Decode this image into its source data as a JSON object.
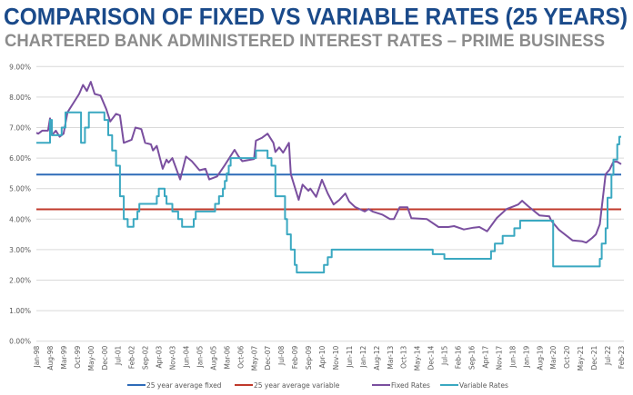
{
  "chart_data": {
    "type": "line",
    "title": "COMPARISON OF FIXED VS VARIABLE RATES (25 YEARS)",
    "subtitle": "CHARTERED BANK ADMINISTERED INTEREST RATES – PRIME  BUSINESS",
    "xlabel": "",
    "ylabel": "",
    "ylim": [
      0,
      9
    ],
    "yticks": [
      "0.00%",
      "1.00%",
      "2.00%",
      "3.00%",
      "4.00%",
      "5.00%",
      "6.00%",
      "7.00%",
      "8.00%",
      "9.00%"
    ],
    "xlim": [
      "1998-01",
      "2023-02"
    ],
    "xticks": [
      "Jan-98",
      "Aug-98",
      "Mar-99",
      "Oct-99",
      "May-00",
      "Dec-00",
      "Jul-01",
      "Feb-02",
      "Sep-02",
      "Apr-03",
      "Nov-03",
      "Jun-04",
      "Jan-05",
      "Aug-05",
      "Mar-06",
      "Oct-06",
      "May-07",
      "Dec-07",
      "Jul-08",
      "Feb-09",
      "Sep-09",
      "Apr-10",
      "Nov-10",
      "Jun-11",
      "Jan-12",
      "Aug-12",
      "Mar-13",
      "Oct-13",
      "May-14",
      "Dec-14",
      "Jul-15",
      "Feb-16",
      "Sep-16",
      "Apr-17",
      "Nov-17",
      "Jun-18",
      "Jan-19",
      "Aug-19",
      "Mar-20",
      "Oct-20",
      "May-21",
      "Dec-21",
      "Jul-22",
      "Feb-23"
    ],
    "grid": true,
    "legend_position": "bottom",
    "series": [
      {
        "name": "25 year average fixed",
        "color": "#2e6bb8",
        "style": "horizontal",
        "value": 5.46
      },
      {
        "name": "25 year average variable",
        "color": "#c0392b",
        "style": "horizontal",
        "value": 4.32
      },
      {
        "name": "Fixed Rates",
        "color": "#7a4f9f",
        "style": "line",
        "points": [
          [
            "1998-01",
            6.83
          ],
          [
            "1998-02",
            6.8
          ],
          [
            "1998-04",
            6.9
          ],
          [
            "1998-07",
            6.9
          ],
          [
            "1998-08",
            7.3
          ],
          [
            "1998-09",
            6.75
          ],
          [
            "1998-11",
            6.9
          ],
          [
            "1999-01",
            6.7
          ],
          [
            "1999-03",
            6.8
          ],
          [
            "1999-05",
            7.5
          ],
          [
            "1999-08",
            7.8
          ],
          [
            "1999-11",
            8.1
          ],
          [
            "2000-01",
            8.4
          ],
          [
            "2000-03",
            8.2
          ],
          [
            "2000-05",
            8.5
          ],
          [
            "2000-07",
            8.1
          ],
          [
            "2000-10",
            8.05
          ],
          [
            "2001-01",
            7.6
          ],
          [
            "2001-03",
            7.2
          ],
          [
            "2001-06",
            7.45
          ],
          [
            "2001-08",
            7.4
          ],
          [
            "2001-10",
            6.5
          ],
          [
            "2002-02",
            6.6
          ],
          [
            "2002-04",
            7.0
          ],
          [
            "2002-07",
            6.95
          ],
          [
            "2002-09",
            6.5
          ],
          [
            "2002-12",
            6.45
          ],
          [
            "2003-01",
            6.25
          ],
          [
            "2003-03",
            6.4
          ],
          [
            "2003-06",
            5.65
          ],
          [
            "2003-08",
            5.95
          ],
          [
            "2003-09",
            5.85
          ],
          [
            "2003-11",
            6.0
          ],
          [
            "2004-03",
            5.3
          ],
          [
            "2004-06",
            6.05
          ],
          [
            "2004-09",
            5.9
          ],
          [
            "2005-01",
            5.6
          ],
          [
            "2005-04",
            5.65
          ],
          [
            "2005-06",
            5.3
          ],
          [
            "2005-10",
            5.4
          ],
          [
            "2006-02",
            5.77
          ],
          [
            "2006-07",
            6.27
          ],
          [
            "2006-09",
            6.06
          ],
          [
            "2006-11",
            5.9
          ],
          [
            "2007-05",
            5.97
          ],
          [
            "2007-06",
            6.57
          ],
          [
            "2007-09",
            6.66
          ],
          [
            "2007-12",
            6.8
          ],
          [
            "2008-03",
            6.5
          ],
          [
            "2008-04",
            6.2
          ],
          [
            "2008-06",
            6.35
          ],
          [
            "2008-08",
            6.18
          ],
          [
            "2008-11",
            6.5
          ],
          [
            "2008-12",
            5.47
          ],
          [
            "2009-04",
            4.63
          ],
          [
            "2009-06",
            5.13
          ],
          [
            "2009-09",
            4.93
          ],
          [
            "2009-10",
            5.0
          ],
          [
            "2010-01",
            4.73
          ],
          [
            "2010-04",
            5.29
          ],
          [
            "2010-07",
            4.84
          ],
          [
            "2010-10",
            4.48
          ],
          [
            "2011-01",
            4.63
          ],
          [
            "2011-04",
            4.84
          ],
          [
            "2011-06",
            4.58
          ],
          [
            "2011-09",
            4.4
          ],
          [
            "2012-02",
            4.25
          ],
          [
            "2012-04",
            4.33
          ],
          [
            "2012-06",
            4.25
          ],
          [
            "2012-11",
            4.15
          ],
          [
            "2013-03",
            4.0
          ],
          [
            "2013-05",
            4.0
          ],
          [
            "2013-08",
            4.39
          ],
          [
            "2013-12",
            4.39
          ],
          [
            "2014-02",
            4.03
          ],
          [
            "2014-10",
            4.0
          ],
          [
            "2015-04",
            3.74
          ],
          [
            "2015-09",
            3.74
          ],
          [
            "2015-12",
            3.77
          ],
          [
            "2016-05",
            3.66
          ],
          [
            "2016-10",
            3.72
          ],
          [
            "2017-01",
            3.74
          ],
          [
            "2017-05",
            3.6
          ],
          [
            "2017-10",
            4.04
          ],
          [
            "2018-03",
            4.33
          ],
          [
            "2018-07",
            4.43
          ],
          [
            "2018-09",
            4.48
          ],
          [
            "2018-11",
            4.6
          ],
          [
            "2019-02",
            4.43
          ],
          [
            "2019-08",
            4.12
          ],
          [
            "2020-01",
            4.09
          ],
          [
            "2020-02",
            3.95
          ],
          [
            "2020-06",
            3.65
          ],
          [
            "2021-01",
            3.3
          ],
          [
            "2021-06",
            3.27
          ],
          [
            "2021-08",
            3.23
          ],
          [
            "2021-11",
            3.38
          ],
          [
            "2022-01",
            3.5
          ],
          [
            "2022-03",
            3.83
          ],
          [
            "2022-06",
            5.47
          ],
          [
            "2022-08",
            5.62
          ],
          [
            "2022-10",
            5.88
          ],
          [
            "2022-12",
            5.88
          ],
          [
            "2023-02",
            5.8
          ]
        ]
      },
      {
        "name": "Variable Rates",
        "color": "#3aa8c1",
        "style": "step",
        "points": [
          [
            "1998-01",
            6.5
          ],
          [
            "1998-08",
            7.25
          ],
          [
            "1998-09",
            6.75
          ],
          [
            "1999-02",
            7.0
          ],
          [
            "1999-04",
            7.5
          ],
          [
            "1999-12",
            6.5
          ],
          [
            "2000-02",
            7.0
          ],
          [
            "2000-04",
            7.5
          ],
          [
            "2000-12",
            7.25
          ],
          [
            "2001-02",
            6.75
          ],
          [
            "2001-04",
            6.25
          ],
          [
            "2001-06",
            5.75
          ],
          [
            "2001-08",
            4.75
          ],
          [
            "2001-10",
            4.0
          ],
          [
            "2001-12",
            3.75
          ],
          [
            "2002-03",
            4.0
          ],
          [
            "2002-05",
            4.25
          ],
          [
            "2002-06",
            4.5
          ],
          [
            "2003-03",
            4.75
          ],
          [
            "2003-04",
            5.0
          ],
          [
            "2003-07",
            4.75
          ],
          [
            "2003-08",
            4.5
          ],
          [
            "2003-11",
            4.25
          ],
          [
            "2004-02",
            4.0
          ],
          [
            "2004-04",
            3.75
          ],
          [
            "2004-10",
            4.0
          ],
          [
            "2004-11",
            4.25
          ],
          [
            "2005-09",
            4.5
          ],
          [
            "2005-11",
            4.75
          ],
          [
            "2006-01",
            5.0
          ],
          [
            "2006-02",
            5.25
          ],
          [
            "2006-03",
            5.5
          ],
          [
            "2006-04",
            5.75
          ],
          [
            "2006-05",
            6.0
          ],
          [
            "2007-06",
            6.25
          ],
          [
            "2007-12",
            6.0
          ],
          [
            "2008-02",
            5.75
          ],
          [
            "2008-04",
            4.75
          ],
          [
            "2008-09",
            4.0
          ],
          [
            "2008-10",
            3.5
          ],
          [
            "2008-12",
            3.0
          ],
          [
            "2009-02",
            2.5
          ],
          [
            "2009-03",
            2.25
          ],
          [
            "2010-05",
            2.5
          ],
          [
            "2010-07",
            2.75
          ],
          [
            "2010-09",
            3.0
          ],
          [
            "2015-01",
            2.85
          ],
          [
            "2015-07",
            2.7
          ],
          [
            "2017-07",
            2.95
          ],
          [
            "2017-09",
            3.2
          ],
          [
            "2018-01",
            3.45
          ],
          [
            "2018-07",
            3.7
          ],
          [
            "2018-10",
            3.95
          ],
          [
            "2020-03",
            2.45
          ],
          [
            "2022-03",
            2.7
          ],
          [
            "2022-04",
            3.2
          ],
          [
            "2022-06",
            3.7
          ],
          [
            "2022-07",
            4.7
          ],
          [
            "2022-09",
            5.45
          ],
          [
            "2022-10",
            5.95
          ],
          [
            "2022-12",
            6.45
          ],
          [
            "2023-01",
            6.7
          ],
          [
            "2023-02",
            6.7
          ]
        ]
      }
    ]
  }
}
